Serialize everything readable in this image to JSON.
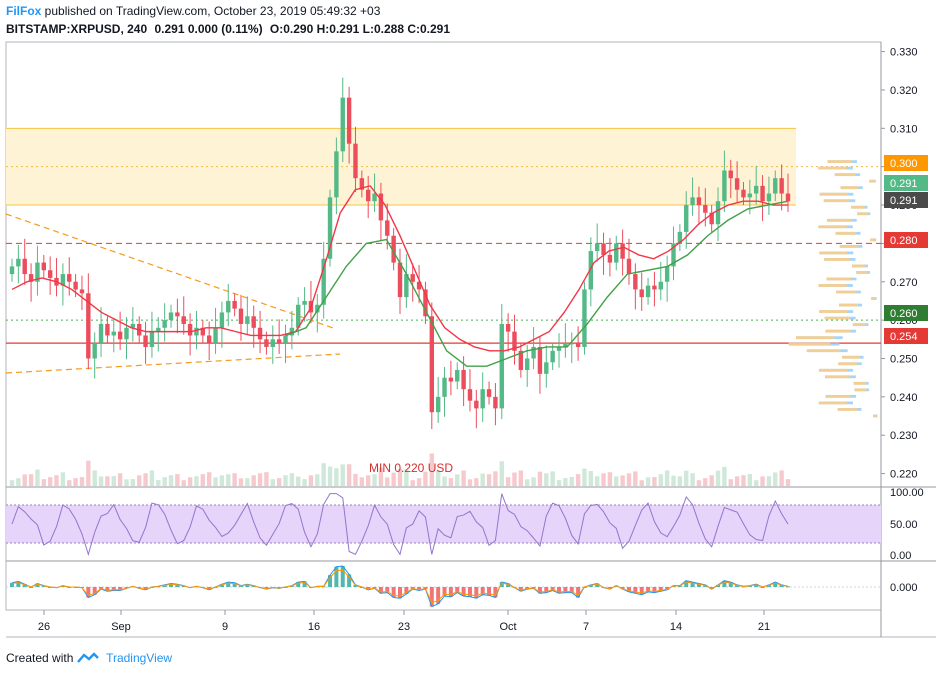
{
  "header": {
    "author": "FilFox",
    "published": " published on TradingView.com, October 23, 2019 05:49:32 +03",
    "symbol": "BITSTAMP:XRPUSD, 240",
    "last": "0.291 0.000 (0.11%)",
    "ohlc": "O:0.290 H:0.291 L:0.288 C:0.291"
  },
  "footer": {
    "created": "Created with",
    "brand": "TradingView"
  },
  "colors": {
    "up": "#53b987",
    "down": "#eb4d5c",
    "sma": "#f23645",
    "ema": "#43a047",
    "zone": "#fff3d6",
    "zone_line": "#f5c542",
    "support": "#e53935",
    "trend": "#f59c1a",
    "rsi_bg": "#e6d4fa",
    "macd_line": "#2196f3",
    "signal_line": "#ff9800"
  },
  "chart_data": {
    "type": "candlestick",
    "symbol": "BITSTAMP:XRPUSD",
    "timeframe": "240",
    "price_axis": {
      "ticks": [
        "0.330",
        "0.320",
        "0.310",
        "0.300",
        "0.290",
        "0.280",
        "0.270",
        "0.260",
        "0.250",
        "0.240",
        "0.230",
        "0.220"
      ],
      "range": [
        0.2165,
        0.3325
      ]
    },
    "time_axis": {
      "ticks": [
        "26",
        "Sep",
        "9",
        "16",
        "23",
        "Oct",
        "7",
        "14",
        "21"
      ]
    },
    "price_badges": [
      {
        "value": "0.300",
        "color": "#ff9800"
      },
      {
        "value": "0.291",
        "color": "#53b987"
      },
      {
        "value": "0.291",
        "color": "#4a4a4a"
      },
      {
        "value": "0.280",
        "color": "#e53935"
      },
      {
        "value": "0.260",
        "color": "#2e7d32"
      },
      {
        "value": "0.254",
        "color": "#e53935"
      }
    ],
    "levels": {
      "zone_top": 0.31,
      "zone_bottom": 0.29,
      "dashed_resistance": 0.28,
      "support": 0.254,
      "dotted": 0.26,
      "dotted_top": 0.3
    },
    "annotation": "MIN 0.220 USD",
    "closes": [
      0.274,
      0.276,
      0.272,
      0.27,
      0.275,
      0.273,
      0.271,
      0.269,
      0.272,
      0.27,
      0.268,
      0.267,
      0.25,
      0.254,
      0.259,
      0.256,
      0.257,
      0.255,
      0.258,
      0.259,
      0.256,
      0.253,
      0.257,
      0.258,
      0.26,
      0.262,
      0.261,
      0.259,
      0.256,
      0.258,
      0.256,
      0.254,
      0.258,
      0.262,
      0.265,
      0.263,
      0.259,
      0.261,
      0.258,
      0.255,
      0.253,
      0.255,
      0.254,
      0.256,
      0.258,
      0.264,
      0.265,
      0.262,
      0.264,
      0.276,
      0.292,
      0.304,
      0.318,
      0.306,
      0.297,
      0.294,
      0.291,
      0.293,
      0.286,
      0.282,
      0.275,
      0.266,
      0.272,
      0.27,
      0.268,
      0.261,
      0.236,
      0.24,
      0.245,
      0.244,
      0.247,
      0.242,
      0.239,
      0.237,
      0.242,
      0.24,
      0.237,
      0.259,
      0.257,
      0.252,
      0.247,
      0.25,
      0.253,
      0.246,
      0.249,
      0.252,
      0.253,
      0.254,
      0.254,
      0.253,
      0.268,
      0.278,
      0.28,
      0.277,
      0.275,
      0.28,
      0.276,
      0.272,
      0.268,
      0.266,
      0.269,
      0.268,
      0.27,
      0.274,
      0.28,
      0.283,
      0.29,
      0.292,
      0.29,
      0.288,
      0.285,
      0.291,
      0.299,
      0.297,
      0.294,
      0.292,
      0.293,
      0.295,
      0.291,
      0.293,
      0.297,
      0.293,
      0.291
    ],
    "sma_values": [
      0.268,
      0.27,
      0.271,
      0.27,
      0.268,
      0.265,
      0.262,
      0.26,
      0.258,
      0.257,
      0.257,
      0.257,
      0.257,
      0.258,
      0.258,
      0.257,
      0.256,
      0.256,
      0.256,
      0.257,
      0.263,
      0.275,
      0.288,
      0.294,
      0.295,
      0.29,
      0.282,
      0.273,
      0.264,
      0.258,
      0.255,
      0.253,
      0.252,
      0.252,
      0.253,
      0.255,
      0.257,
      0.262,
      0.268,
      0.275,
      0.278,
      0.279,
      0.277,
      0.276,
      0.278,
      0.281,
      0.285,
      0.288,
      0.29,
      0.291,
      0.291,
      0.29,
      0.29
    ],
    "ema_values": [
      0.256,
      0.258,
      0.266,
      0.274,
      0.28,
      0.281,
      0.272,
      0.262,
      0.252,
      0.248,
      0.248,
      0.25,
      0.252,
      0.253,
      0.253,
      0.259,
      0.266,
      0.272,
      0.273,
      0.274,
      0.277,
      0.282,
      0.286,
      0.289,
      0.29,
      0.291
    ],
    "rsi": {
      "ticks": [
        "100.00",
        "50.00",
        "0.00"
      ],
      "band": [
        20,
        80
      ]
    },
    "macd": {
      "ticks": [
        "0.000"
      ]
    }
  }
}
